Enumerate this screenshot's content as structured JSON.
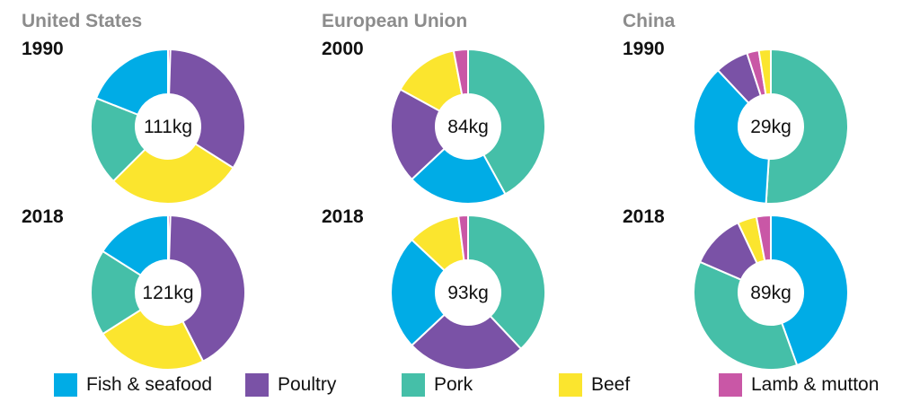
{
  "categories": [
    "Fish & seafood",
    "Poultry",
    "Pork",
    "Beef",
    "Lamb & mutton"
  ],
  "colors": {
    "Fish & seafood": "#00ace6",
    "Poultry": "#7a52a6",
    "Pork": "#45bfa8",
    "Beef": "#fbe52e",
    "Lamb & mutton": "#c957a6"
  },
  "regions": [
    {
      "name": "United States"
    },
    {
      "name": "European Union"
    },
    {
      "name": "China"
    }
  ],
  "chart_data": [
    {
      "type": "pie",
      "region": "United States",
      "year": "1990",
      "total_label": "111kg",
      "slices": [
        {
          "category": "Lamb & mutton",
          "value": 0.5
        },
        {
          "category": "Poultry",
          "value": 33.5
        },
        {
          "category": "Beef",
          "value": 28.5
        },
        {
          "category": "Pork",
          "value": 18.5
        },
        {
          "category": "Fish & seafood",
          "value": 19.0
        }
      ]
    },
    {
      "type": "pie",
      "region": "European Union",
      "year": "2000",
      "total_label": "84kg",
      "slices": [
        {
          "category": "Pork",
          "value": 42.0
        },
        {
          "category": "Fish & seafood",
          "value": 21.0
        },
        {
          "category": "Poultry",
          "value": 20.0
        },
        {
          "category": "Beef",
          "value": 14.0
        },
        {
          "category": "Lamb & mutton",
          "value": 3.0
        }
      ]
    },
    {
      "type": "pie",
      "region": "China",
      "year": "1990",
      "total_label": "29kg",
      "slices": [
        {
          "category": "Pork",
          "value": 51.0
        },
        {
          "category": "Fish & seafood",
          "value": 37.0
        },
        {
          "category": "Poultry",
          "value": 7.0
        },
        {
          "category": "Lamb & mutton",
          "value": 2.5
        },
        {
          "category": "Beef",
          "value": 2.5
        }
      ]
    },
    {
      "type": "pie",
      "region": "United States",
      "year": "2018",
      "total_label": "121kg",
      "slices": [
        {
          "category": "Lamb & mutton",
          "value": 0.5
        },
        {
          "category": "Poultry",
          "value": 42.0
        },
        {
          "category": "Beef",
          "value": 23.5
        },
        {
          "category": "Pork",
          "value": 18.0
        },
        {
          "category": "Fish & seafood",
          "value": 16.0
        }
      ]
    },
    {
      "type": "pie",
      "region": "European Union",
      "year": "2018",
      "total_label": "93kg",
      "slices": [
        {
          "category": "Pork",
          "value": 38.0
        },
        {
          "category": "Poultry",
          "value": 25.0
        },
        {
          "category": "Fish & seafood",
          "value": 24.0
        },
        {
          "category": "Beef",
          "value": 11.0
        },
        {
          "category": "Lamb & mutton",
          "value": 2.0
        }
      ]
    },
    {
      "type": "pie",
      "region": "China",
      "year": "2018",
      "total_label": "89kg",
      "slices": [
        {
          "category": "Fish & seafood",
          "value": 44.5
        },
        {
          "category": "Pork",
          "value": 37.0
        },
        {
          "category": "Poultry",
          "value": 11.5
        },
        {
          "category": "Beef",
          "value": 4.0
        },
        {
          "category": "Lamb & mutton",
          "value": 3.0
        }
      ]
    }
  ]
}
